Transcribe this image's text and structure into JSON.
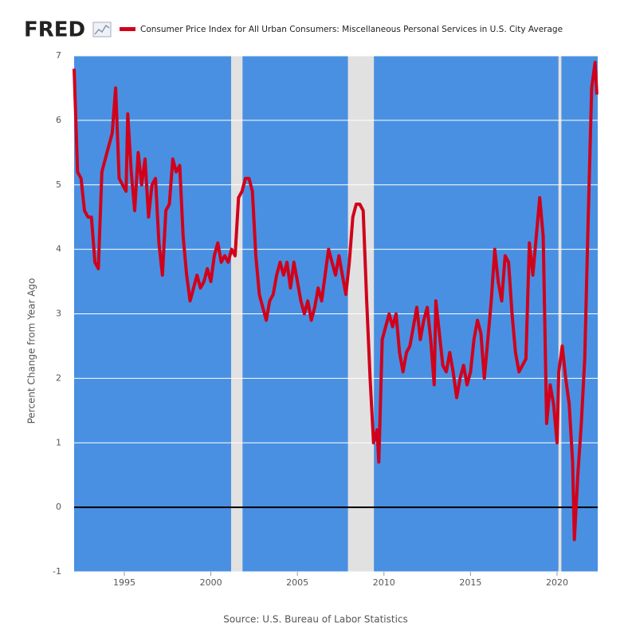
{
  "logo": "FRED",
  "chart_data": {
    "type": "line",
    "y_label": "Percent Change from Year Ago",
    "source": "Source: U.S. Bureau of Labor Statistics",
    "x": [
      1992.1,
      1992.3,
      1992.5,
      1992.7,
      1992.9,
      1993.1,
      1993.3,
      1993.5,
      1993.7,
      1993.9,
      1994.1,
      1994.3,
      1994.5,
      1994.7,
      1994.9,
      1995.1,
      1995.2,
      1995.4,
      1995.6,
      1995.8,
      1996.0,
      1996.2,
      1996.4,
      1996.6,
      1996.8,
      1997.0,
      1997.2,
      1997.4,
      1997.6,
      1997.8,
      1998.0,
      1998.2,
      1998.4,
      1998.6,
      1998.8,
      1999.0,
      1999.2,
      1999.4,
      1999.6,
      1999.8,
      2000.0,
      2000.2,
      2000.4,
      2000.6,
      2000.8,
      2001.0,
      2001.2,
      2001.4,
      2001.6,
      2001.8,
      2002.0,
      2002.2,
      2002.4,
      2002.6,
      2002.8,
      2003.0,
      2003.2,
      2003.4,
      2003.6,
      2003.8,
      2004.0,
      2004.2,
      2004.4,
      2004.6,
      2004.8,
      2005.0,
      2005.2,
      2005.4,
      2005.6,
      2005.8,
      2006.0,
      2006.2,
      2006.4,
      2006.6,
      2006.8,
      2007.0,
      2007.2,
      2007.4,
      2007.6,
      2007.8,
      2008.0,
      2008.2,
      2008.4,
      2008.6,
      2008.8,
      2009.0,
      2009.2,
      2009.4,
      2009.6,
      2009.7,
      2009.9,
      2010.1,
      2010.3,
      2010.5,
      2010.7,
      2010.9,
      2011.1,
      2011.3,
      2011.5,
      2011.7,
      2011.9,
      2012.1,
      2012.3,
      2012.5,
      2012.7,
      2012.9,
      2013.0,
      2013.2,
      2013.4,
      2013.6,
      2013.8,
      2014.0,
      2014.2,
      2014.4,
      2014.6,
      2014.8,
      2015.0,
      2015.2,
      2015.4,
      2015.6,
      2015.8,
      2016.0,
      2016.2,
      2016.4,
      2016.6,
      2016.8,
      2017.0,
      2017.2,
      2017.4,
      2017.6,
      2017.8,
      2018.0,
      2018.2,
      2018.4,
      2018.6,
      2018.8,
      2019.0,
      2019.2,
      2019.4,
      2019.6,
      2019.8,
      2020.0,
      2020.1,
      2020.3,
      2020.5,
      2020.7,
      2020.9,
      2021.0,
      2021.2,
      2021.4,
      2021.6,
      2021.8,
      2022.0,
      2022.2,
      2022.3
    ],
    "series": [
      {
        "name": "Consumer Price Index for All Urban Consumers: Miscellaneous Personal Services in U.S. City Average",
        "color": "#d0021b",
        "values": [
          6.8,
          5.2,
          5.1,
          4.6,
          4.5,
          4.5,
          3.8,
          3.7,
          5.2,
          5.4,
          5.6,
          5.8,
          6.5,
          5.1,
          5.0,
          4.9,
          6.1,
          5.2,
          4.6,
          5.5,
          5.0,
          5.4,
          4.5,
          5.0,
          5.1,
          4.1,
          3.6,
          4.6,
          4.7,
          5.4,
          5.2,
          5.3,
          4.2,
          3.6,
          3.2,
          3.4,
          3.6,
          3.4,
          3.5,
          3.7,
          3.5,
          3.9,
          4.1,
          3.8,
          3.9,
          3.8,
          4.0,
          3.9,
          4.8,
          4.9,
          5.1,
          5.1,
          4.9,
          3.9,
          3.3,
          3.1,
          2.9,
          3.2,
          3.3,
          3.6,
          3.8,
          3.6,
          3.8,
          3.4,
          3.8,
          3.5,
          3.2,
          3.0,
          3.2,
          2.9,
          3.1,
          3.4,
          3.2,
          3.6,
          4.0,
          3.8,
          3.6,
          3.9,
          3.6,
          3.3,
          3.8,
          4.5,
          4.7,
          4.7,
          4.6,
          3.2,
          2.0,
          1.0,
          1.2,
          0.7,
          2.6,
          2.8,
          3.0,
          2.8,
          3.0,
          2.4,
          2.1,
          2.4,
          2.5,
          2.8,
          3.1,
          2.6,
          2.9,
          3.1,
          2.6,
          1.9,
          3.2,
          2.7,
          2.2,
          2.1,
          2.4,
          2.1,
          1.7,
          2.0,
          2.2,
          1.9,
          2.1,
          2.6,
          2.9,
          2.7,
          2.0,
          2.6,
          3.2,
          4.0,
          3.5,
          3.2,
          3.9,
          3.8,
          3.0,
          2.4,
          2.1,
          2.2,
          2.3,
          4.1,
          3.6,
          4.2,
          4.8,
          4.2,
          1.3,
          1.9,
          1.6,
          1.0,
          2.1,
          2.5,
          2.0,
          1.6,
          0.7,
          -0.5,
          0.5,
          1.3,
          2.3,
          4.5,
          6.5,
          6.9,
          6.4
        ]
      }
    ],
    "recessions": [
      [
        2001.17,
        2001.83
      ],
      [
        2007.92,
        2009.42
      ],
      [
        2020.08,
        2020.25
      ]
    ],
    "xlim": [
      1992.1,
      2022.35
    ],
    "ylim": [
      -1,
      7
    ],
    "xticks": [
      1995,
      2000,
      2005,
      2010,
      2015,
      2020
    ],
    "yticks": [
      -1,
      0,
      1,
      2,
      3,
      4,
      5,
      6,
      7
    ],
    "grid": true,
    "plot_color": "#4a90e2",
    "recession_color": "#e1e1e1"
  }
}
